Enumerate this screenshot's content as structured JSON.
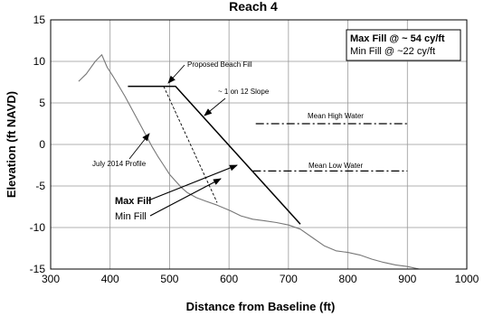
{
  "chart_data": {
    "type": "line",
    "title": "Reach 4",
    "xlabel": "Distance from Baseline (ft)",
    "ylabel": "Elevation (ft NAVD)",
    "xlim": [
      300,
      1000
    ],
    "ylim": [
      -15,
      15
    ],
    "xticks": [
      300,
      400,
      500,
      600,
      700,
      800,
      900,
      1000
    ],
    "yticks": [
      15,
      10,
      5,
      0,
      -5,
      -10,
      -15
    ],
    "grid": true,
    "series": [
      {
        "name": "July 2014 Profile",
        "color": "#777777",
        "style": "solid",
        "x": [
          347,
          360,
          375,
          386,
          395,
          405,
          415,
          425,
          440,
          455,
          470,
          480,
          490,
          500,
          510,
          520,
          530,
          545,
          560,
          580,
          600,
          620,
          640,
          660,
          680,
          700,
          720,
          740,
          760,
          780,
          800,
          820,
          840,
          860,
          880,
          900,
          920
        ],
        "y": [
          7.6,
          8.5,
          10,
          10.8,
          9.3,
          8.2,
          7,
          5.8,
          3.8,
          1.8,
          -0.2,
          -1.4,
          -2.5,
          -3.6,
          -4.4,
          -5.2,
          -5.8,
          -6.4,
          -6.8,
          -7.3,
          -7.9,
          -8.6,
          -9.0,
          -9.2,
          -9.4,
          -9.7,
          -10.2,
          -11.2,
          -12.2,
          -12.8,
          -13.0,
          -13.3,
          -13.8,
          -14.2,
          -14.5,
          -14.7,
          -15.0
        ]
      },
      {
        "name": "Proposed Beach Fill",
        "color": "#000000",
        "style": "solid",
        "x": [
          430,
          510,
          720
        ],
        "y": [
          7.0,
          7.0,
          -9.6
        ]
      },
      {
        "name": "Min Fill",
        "color": "#000000",
        "style": "dashed",
        "x": [
          490,
          580
        ],
        "y": [
          7.0,
          -7.0
        ]
      },
      {
        "name": "Mean High Water",
        "color": "#000000",
        "style": "dashdot",
        "x": [
          645,
          900
        ],
        "y": [
          2.5,
          2.5
        ]
      },
      {
        "name": "Mean Low Water",
        "color": "#000000",
        "style": "dashdot",
        "x": [
          640,
          900
        ],
        "y": [
          -3.2,
          -3.2
        ]
      }
    ],
    "annotations": {
      "proposed_fill": "Proposed Beach Fill",
      "slope": "~ 1 on 12 Slope",
      "profile": "July 2014 Profile",
      "mhw": "Mean High Water",
      "mlw": "Mean Low Water",
      "max_fill": "Max Fill",
      "min_fill": "Min Fill"
    },
    "legend": {
      "position": "top-right",
      "max_line": "Max Fill @ ~ 54 cy/ft",
      "min_line": "Min Fill @ ~22 cy/ft"
    }
  }
}
